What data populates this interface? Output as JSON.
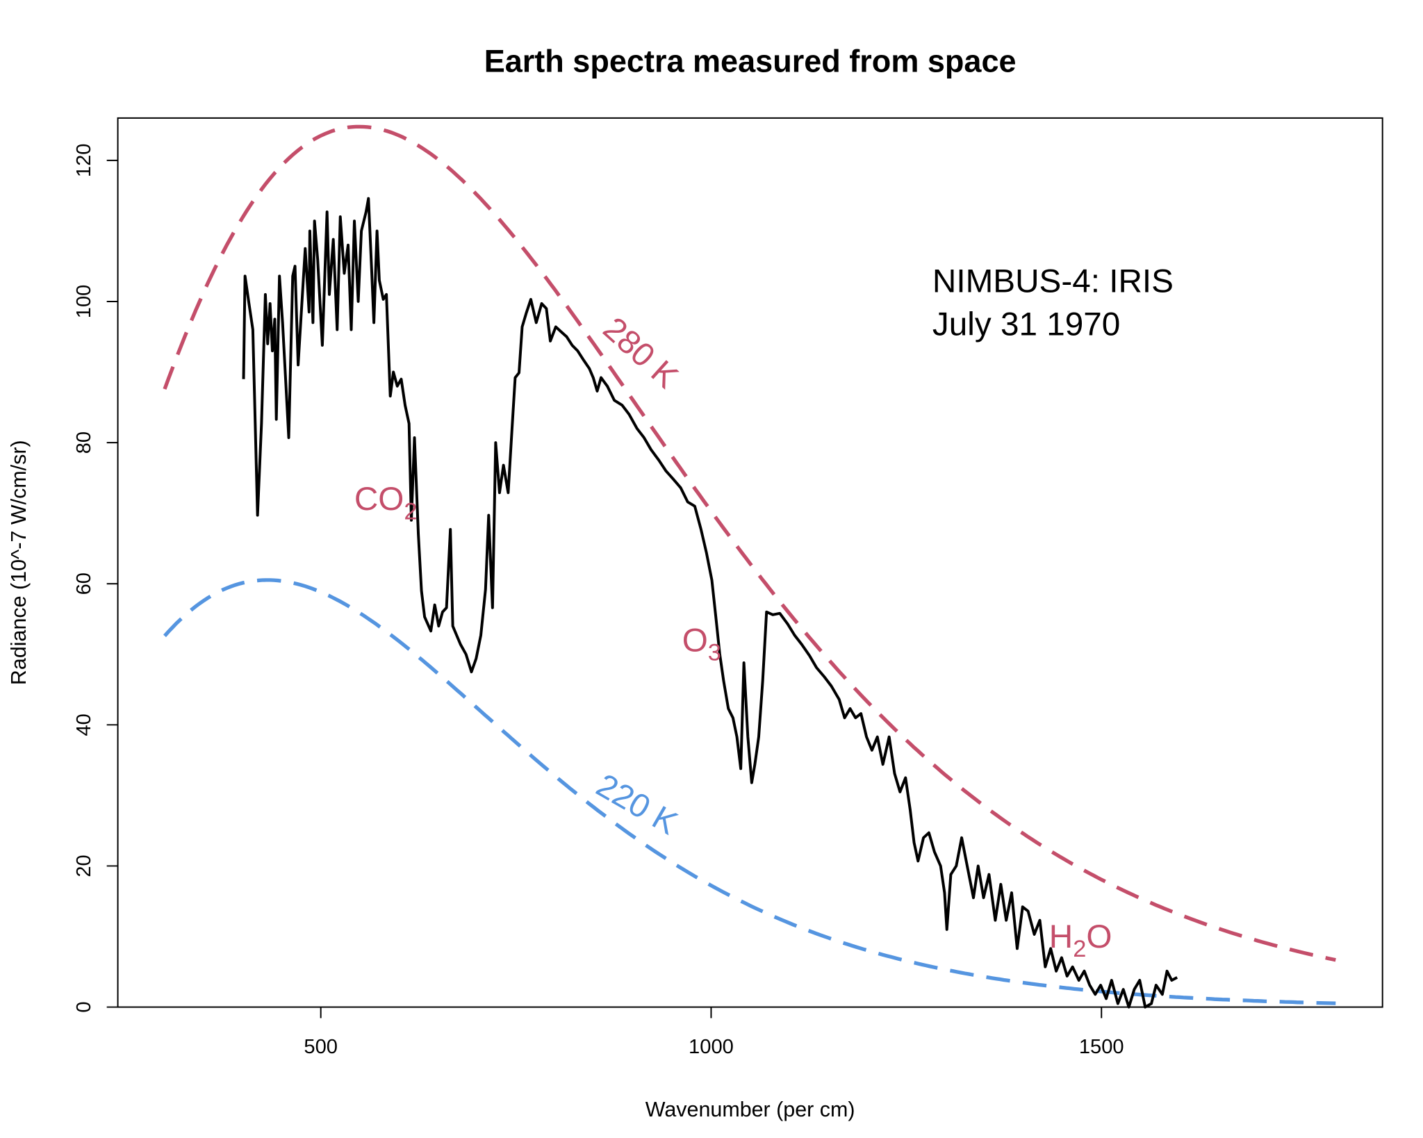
{
  "chart_data": {
    "type": "line",
    "title": "Earth spectra measured from space",
    "xlabel": "Wavenumber (per cm)",
    "ylabel": "Radiance (10^-7 W/cm/sr)",
    "xlim": [
      240,
      1860
    ],
    "ylim": [
      0,
      126
    ],
    "xticks": [
      500,
      1000,
      1500
    ],
    "yticks": [
      0,
      20,
      40,
      60,
      80,
      100,
      120
    ],
    "grid": false,
    "info_lines": [
      "NIMBUS-4: IRIS",
      "July 31 1970"
    ],
    "reference_curves": [
      {
        "label": "280 K",
        "temperature_K": 280,
        "x_range": [
          300,
          1800
        ],
        "color": "#c44e6a",
        "style": "dashed"
      },
      {
        "label": "220 K",
        "temperature_K": 220,
        "x_range": [
          300,
          1800
        ],
        "color": "#5595e0",
        "style": "dashed"
      }
    ],
    "absorption_labels": [
      {
        "text": "CO",
        "sub": "2",
        "x": 590,
        "y": 72
      },
      {
        "text": "O",
        "sub": "3",
        "x": 1010,
        "y": 52
      },
      {
        "text": "H",
        "sub": "2",
        "text2": "O",
        "x": 1480,
        "y": 10
      }
    ],
    "measured": {
      "color": "#000000",
      "x": [
        401,
        403,
        408,
        413,
        419,
        424,
        429,
        432,
        435,
        438,
        441,
        443,
        447,
        451,
        459,
        464,
        467,
        471,
        480,
        485,
        486,
        490,
        492,
        496,
        502,
        508,
        511,
        516,
        521,
        525,
        530,
        535,
        539,
        543,
        548,
        552,
        558,
        561,
        565,
        568,
        572,
        575,
        580,
        584,
        589,
        593,
        598,
        603,
        608,
        613,
        616,
        620,
        625,
        629,
        633,
        641,
        646,
        651,
        656,
        661,
        666,
        669,
        674,
        679,
        686,
        693,
        699,
        705,
        711,
        715,
        720,
        724,
        729,
        734,
        740,
        745,
        749,
        754,
        758,
        763,
        769,
        776,
        783,
        789,
        794,
        801,
        808,
        815,
        822,
        829,
        836,
        844,
        849,
        854,
        859,
        867,
        876,
        886,
        895,
        905,
        914,
        923,
        933,
        942,
        951,
        961,
        970,
        979,
        987,
        994,
        1001,
        1006,
        1011,
        1016,
        1022,
        1028,
        1033,
        1038,
        1042,
        1047,
        1052,
        1056,
        1061,
        1066,
        1071,
        1079,
        1088,
        1098,
        1107,
        1116,
        1126,
        1135,
        1145,
        1154,
        1164,
        1171,
        1178,
        1185,
        1192,
        1199,
        1206,
        1213,
        1220,
        1228,
        1235,
        1242,
        1249,
        1255,
        1260,
        1265,
        1272,
        1279,
        1286,
        1294,
        1299,
        1302,
        1307,
        1314,
        1321,
        1328,
        1336,
        1342,
        1349,
        1356,
        1364,
        1371,
        1378,
        1385,
        1392,
        1399,
        1406,
        1414,
        1421,
        1428,
        1435,
        1442,
        1449,
        1456,
        1463,
        1471,
        1478,
        1485,
        1492,
        1499,
        1506,
        1513,
        1521,
        1528,
        1535,
        1542,
        1549,
        1556,
        1564,
        1570,
        1578,
        1584,
        1590,
        1597
      ],
      "y": [
        89,
        103.6,
        99.7,
        96,
        69.7,
        82.7,
        101,
        94,
        99.7,
        93,
        97.5,
        83.3,
        103.6,
        97,
        80.7,
        103.6,
        105,
        91,
        107.5,
        98.5,
        110,
        97,
        111.4,
        106,
        93.8,
        112.7,
        101,
        108.8,
        96,
        112,
        104,
        108,
        96,
        111.4,
        100,
        110,
        112.7,
        114.6,
        105,
        97,
        110,
        103,
        100.3,
        101,
        86.6,
        90,
        88,
        89,
        85.3,
        82.7,
        69,
        80.7,
        67,
        59,
        55.3,
        53.3,
        57,
        54,
        56,
        56.6,
        67.7,
        54,
        52.7,
        51.4,
        50,
        47.5,
        49.4,
        52.7,
        59.2,
        69.7,
        56.6,
        80,
        72.9,
        76.8,
        72.9,
        82,
        89.2,
        89.9,
        96.4,
        98.3,
        100.3,
        97,
        99.7,
        99,
        94.4,
        96.4,
        95.7,
        95,
        93.8,
        93,
        91.8,
        90.5,
        89.2,
        87.3,
        89.2,
        88,
        86,
        85.3,
        84,
        82,
        80.7,
        79,
        77.5,
        76,
        74.9,
        73.6,
        71.6,
        71,
        67.7,
        64.4,
        60.5,
        55.3,
        50.1,
        46.2,
        42.3,
        41,
        38.3,
        33.8,
        48.8,
        38.3,
        31.8,
        34.4,
        38.3,
        46.2,
        56,
        55.6,
        55.8,
        54.3,
        52.7,
        51.4,
        49.8,
        48.1,
        46.8,
        45.5,
        43.6,
        41,
        42.3,
        41,
        41.6,
        38.3,
        36.4,
        38.3,
        34.4,
        38.3,
        33.1,
        30.5,
        32.5,
        27.9,
        23.3,
        20.7,
        24,
        24.7,
        22,
        20,
        16.2,
        11,
        18.8,
        20,
        24,
        20,
        15.5,
        20,
        15.5,
        18.8,
        12.3,
        17.4,
        12.3,
        16.2,
        8.3,
        14.2,
        13.6,
        10.3,
        12.3,
        5.7,
        8.3,
        5.1,
        7,
        4.4,
        5.7,
        3.8,
        5.1,
        3.1,
        1.8,
        3.1,
        1.2,
        3.8,
        0.5,
        2.5,
        0,
        2.5,
        3.8,
        0,
        0.5,
        3.1,
        1.8,
        5.1,
        3.8,
        4.2
      ]
    }
  }
}
